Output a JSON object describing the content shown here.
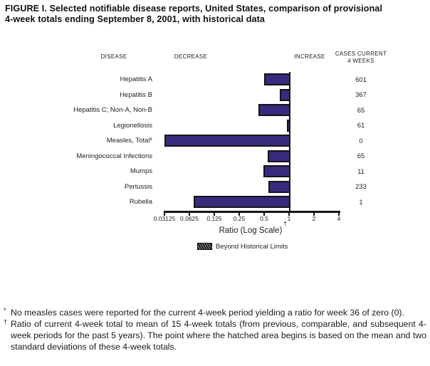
{
  "figure": {
    "title": "FIGURE I. Selected notifiable disease reports, United States, comparison of provisional 4-week totals ending September 8, 2001, with historical data"
  },
  "table": {
    "col_disease": "DISEASE",
    "col_decrease": "DECREASE",
    "col_increase": "INCREASE",
    "col_cases_line1": "CASES CURRENT",
    "col_cases_line2": "4 WEEKS"
  },
  "chart_data": {
    "type": "bar",
    "orientation": "horizontal",
    "title": "",
    "x_axis": {
      "label": "Ratio (Log Scale)",
      "footnote_marker": "†",
      "scale": "log2",
      "ticks": [
        "0.03125",
        "0.0625",
        "0.125",
        "0.25",
        "0.5",
        "1",
        "2",
        "4"
      ],
      "min": 0.03125,
      "max": 4,
      "baseline_ratio": 1
    },
    "rows": [
      {
        "disease": "Hepatitis A",
        "cases": "601",
        "ratio": 0.5
      },
      {
        "disease": "Hepatitis B",
        "cases": "367",
        "ratio": 0.78
      },
      {
        "disease": "Hepatitis C; Non-A, Non-B",
        "cases": "65",
        "ratio": 0.43
      },
      {
        "disease": "Legionellosis",
        "cases": "61",
        "ratio": 0.94
      },
      {
        "disease": "Measles, Total*",
        "cases": "0",
        "ratio": 0
      },
      {
        "disease": "Meningococcal Infections",
        "cases": "65",
        "ratio": 0.55
      },
      {
        "disease": "Mumps",
        "cases": "11",
        "ratio": 0.49
      },
      {
        "disease": "Pertussis",
        "cases": "233",
        "ratio": 0.56
      },
      {
        "disease": "Rubella",
        "cases": "1",
        "ratio": 0.07
      }
    ],
    "legend": [
      {
        "label": "Beyond Historical Limits",
        "swatch": "hatched"
      }
    ],
    "colors": {
      "bar_fill": "#382a7d",
      "bar_border": "#141414",
      "axis": "#141414"
    }
  },
  "footnotes": [
    {
      "marker": "*",
      "text": "No measles cases were reported for the current 4-week period yielding a ratio for week 36 of zero (0)."
    },
    {
      "marker": "†",
      "text": "Ratio of current 4-week total to mean of 15 4-week totals (from previous, comparable, and subsequent 4-week periods for the past 5 years). The point where the hatched area begins is based on the mean and two standard deviations of these 4-week totals."
    }
  ]
}
